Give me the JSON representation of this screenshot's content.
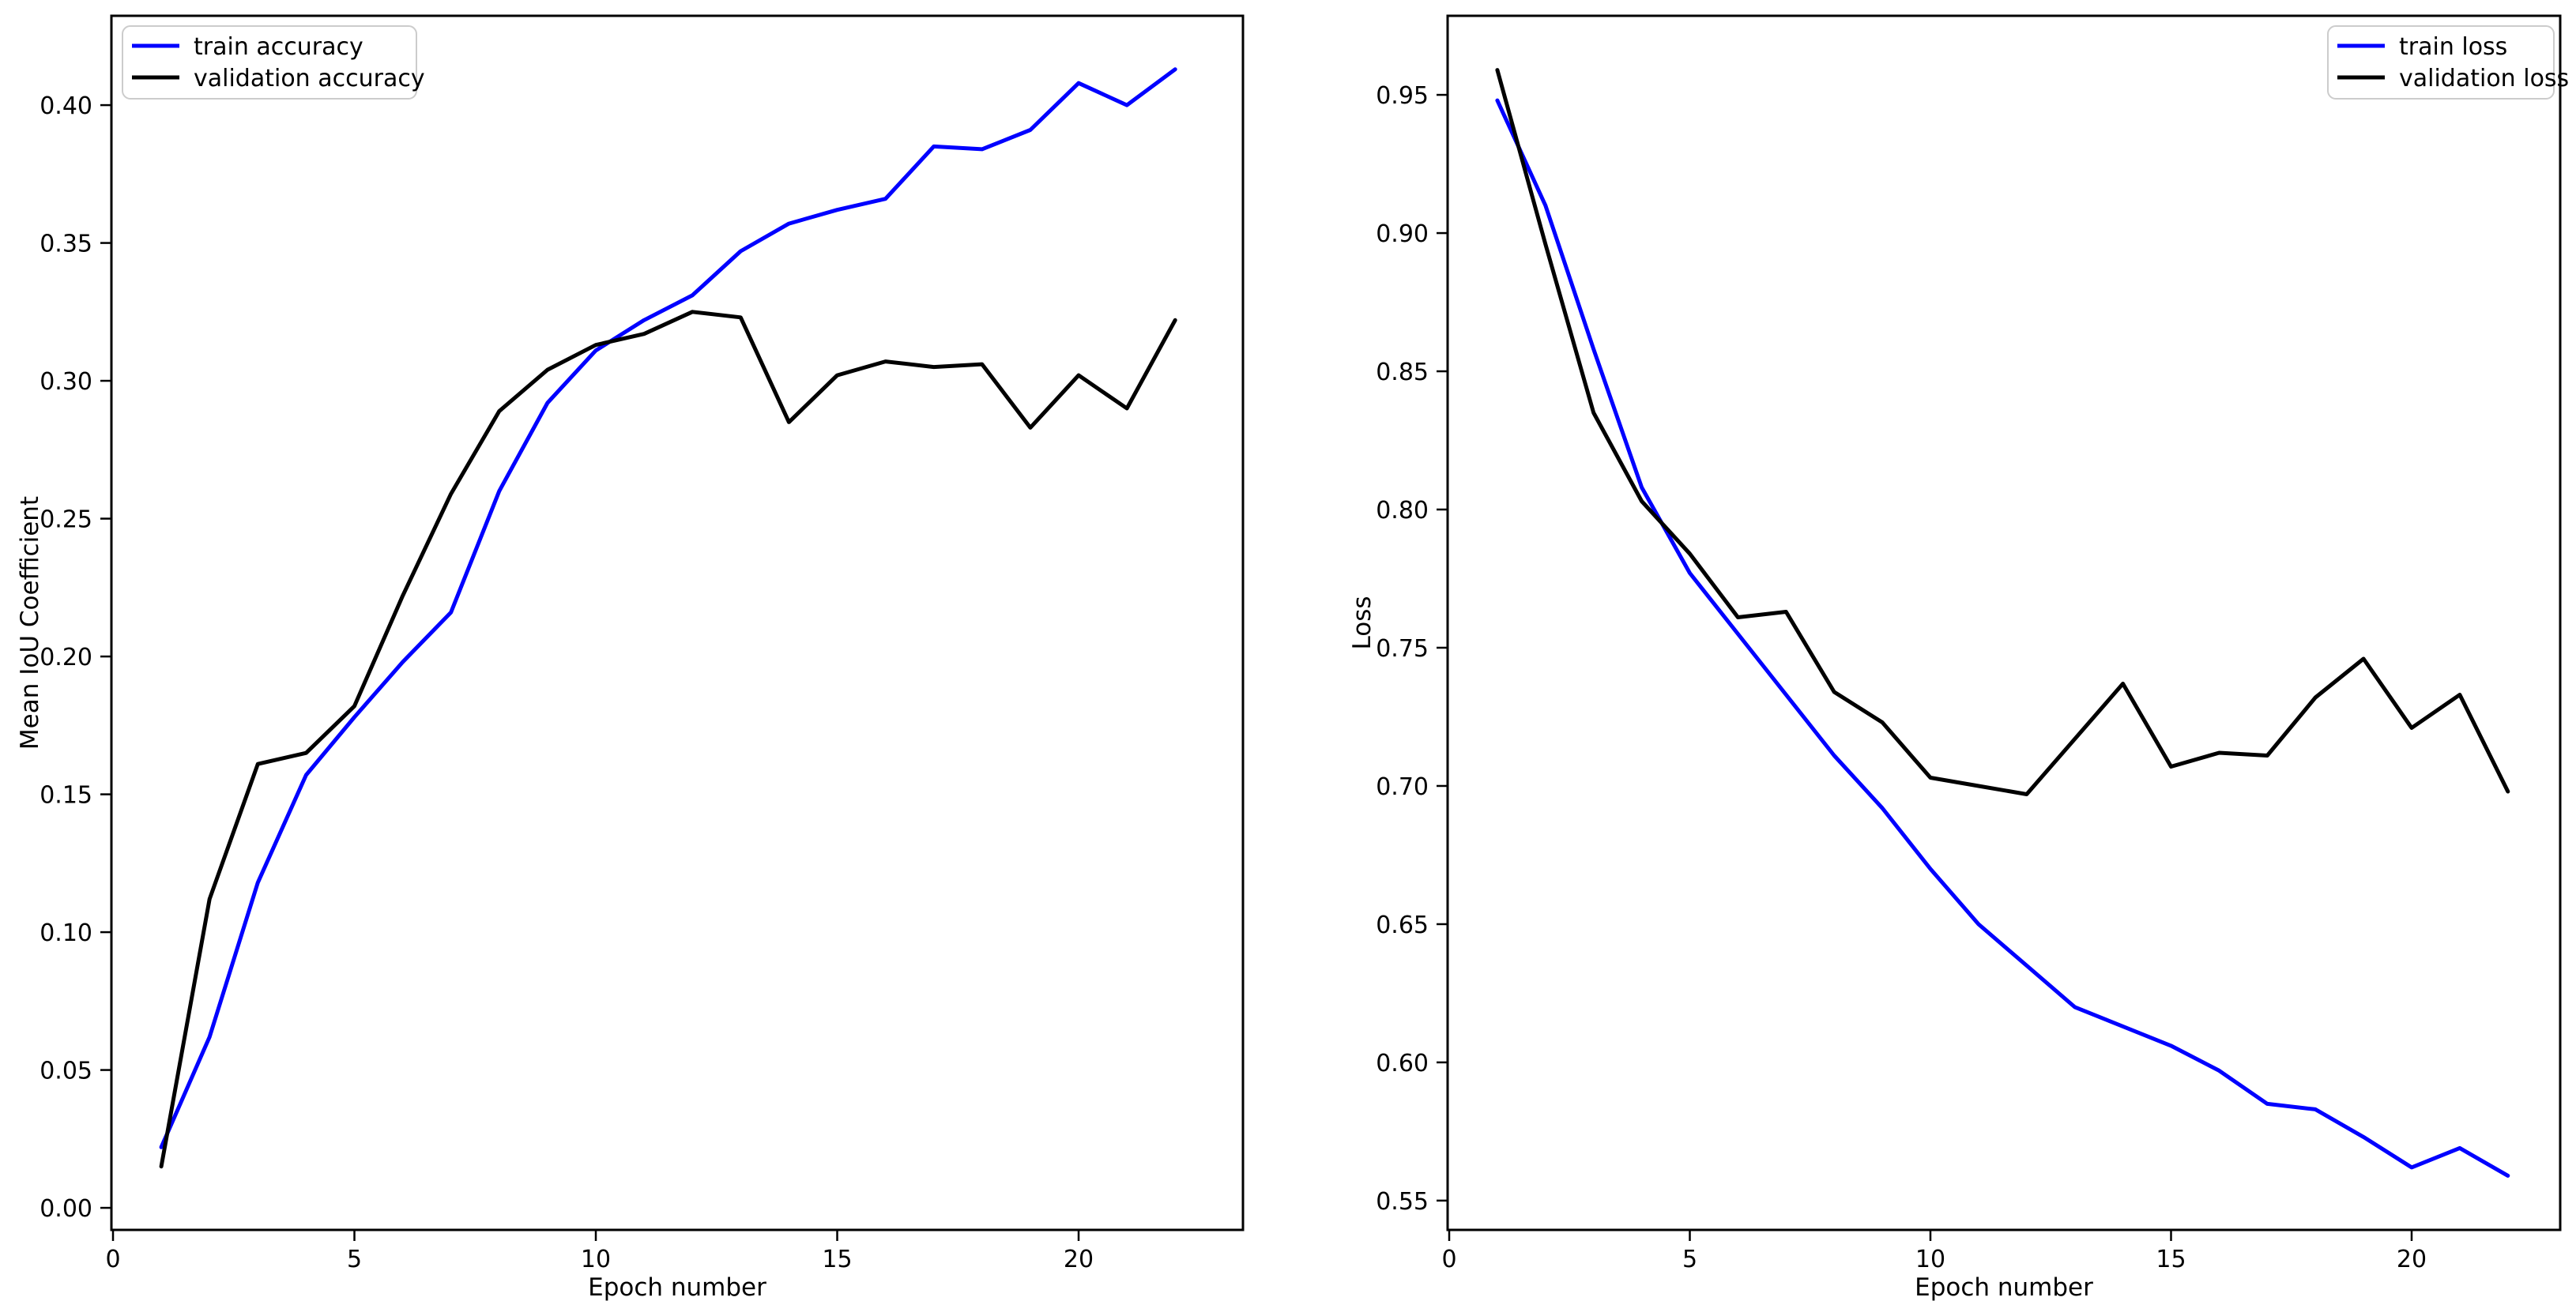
{
  "figure": {
    "background": "#ffffff"
  },
  "chart_data": [
    {
      "id": "iou",
      "type": "line",
      "title": "",
      "xlabel": "Epoch number",
      "ylabel": "Mean IoU Coefficient",
      "grid": false,
      "legend_position": "upper left",
      "xlim": [
        -0.033,
        23.404
      ],
      "ylim": [
        -0.008,
        0.4324
      ],
      "xticks": {
        "values": [
          0,
          5,
          10,
          15,
          20
        ],
        "labels": [
          "0",
          "5",
          "10",
          "15",
          "20"
        ]
      },
      "yticks": {
        "values": [
          0.0,
          0.05,
          0.1,
          0.15,
          0.2,
          0.25,
          0.3,
          0.35,
          0.4
        ],
        "labels": [
          "0.00",
          "0.05",
          "0.10",
          "0.15",
          "0.20",
          "0.25",
          "0.30",
          "0.35",
          "0.40"
        ]
      },
      "x": [
        1,
        2,
        3,
        4,
        5,
        6,
        7,
        8,
        9,
        10,
        11,
        12,
        13,
        14,
        15,
        16,
        17,
        18,
        19,
        20,
        21,
        22
      ],
      "series": [
        {
          "name": "train accuracy",
          "color": "#0000ff",
          "values": [
            0.022,
            0.062,
            0.118,
            0.157,
            0.178,
            0.198,
            0.216,
            0.26,
            0.292,
            0.311,
            0.322,
            0.331,
            0.347,
            0.357,
            0.362,
            0.366,
            0.385,
            0.384,
            0.391,
            0.408,
            0.4,
            0.413
          ]
        },
        {
          "name": "validation accuracy",
          "color": "#000000",
          "values": [
            0.015,
            0.112,
            0.161,
            0.165,
            0.182,
            0.222,
            0.259,
            0.289,
            0.304,
            0.313,
            0.317,
            0.325,
            0.323,
            0.285,
            0.302,
            0.307,
            0.305,
            0.306,
            0.283,
            0.302,
            0.29,
            0.322
          ]
        }
      ]
    },
    {
      "id": "loss",
      "type": "line",
      "title": "",
      "xlabel": "Epoch number",
      "ylabel": "Loss",
      "grid": false,
      "legend_position": "upper right",
      "xlim": [
        -0.033,
        23.087
      ],
      "ylim": [
        0.5394,
        0.9786
      ],
      "xticks": {
        "values": [
          0,
          5,
          10,
          15,
          20
        ],
        "labels": [
          "0",
          "5",
          "10",
          "15",
          "20"
        ]
      },
      "yticks": {
        "values": [
          0.55,
          0.6,
          0.65,
          0.7,
          0.75,
          0.8,
          0.85,
          0.9,
          0.95
        ],
        "labels": [
          "0.55",
          "0.60",
          "0.65",
          "0.70",
          "0.75",
          "0.80",
          "0.85",
          "0.90",
          "0.95"
        ]
      },
      "x": [
        1,
        2,
        3,
        4,
        5,
        6,
        7,
        8,
        9,
        10,
        11,
        12,
        13,
        14,
        15,
        16,
        17,
        18,
        19,
        20,
        21,
        22
      ],
      "series": [
        {
          "name": "train loss",
          "color": "#0000ff",
          "values": [
            0.948,
            0.91,
            0.858,
            0.808,
            0.777,
            0.755,
            0.733,
            0.711,
            0.692,
            0.67,
            0.65,
            0.635,
            0.62,
            0.613,
            0.606,
            0.597,
            0.585,
            0.583,
            0.573,
            0.562,
            0.569,
            0.559
          ]
        },
        {
          "name": "validation loss",
          "color": "#000000",
          "values": [
            0.959,
            0.896,
            0.835,
            0.803,
            0.784,
            0.761,
            0.763,
            0.734,
            0.723,
            0.703,
            0.7,
            0.697,
            0.717,
            0.737,
            0.707,
            0.712,
            0.711,
            0.732,
            0.746,
            0.721,
            0.733,
            0.698
          ]
        }
      ]
    }
  ]
}
